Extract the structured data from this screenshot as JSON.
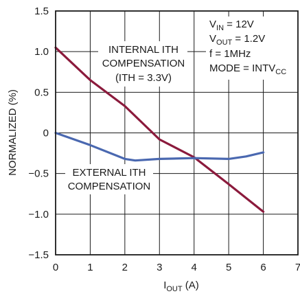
{
  "chart_data": {
    "type": "line",
    "xlabel": "I_OUT (A)",
    "ylabel": "NORMALIZED (%)",
    "xlim": [
      0,
      7
    ],
    "ylim": [
      -1.5,
      1.5
    ],
    "x_ticks": [
      "0",
      "1",
      "2",
      "3",
      "4",
      "5",
      "6",
      "7"
    ],
    "y_ticks": [
      "1.5",
      "1.0",
      "0.5",
      "0",
      "−0.5",
      "−1.0",
      "−1.5"
    ],
    "grid": true,
    "series": [
      {
        "name": "INTERNAL ITH COMPENSATION (ITH = 3.3V)",
        "color": "#8b1a3c",
        "x": [
          0,
          1,
          2,
          3,
          4,
          5,
          6
        ],
        "y": [
          1.05,
          0.65,
          0.33,
          -0.08,
          -0.3,
          -0.63,
          -0.97
        ]
      },
      {
        "name": "EXTERNAL ITH COMPENSATION",
        "color": "#4a68b0",
        "x": [
          0,
          1,
          2,
          2.3,
          3,
          4,
          5,
          5.5,
          6
        ],
        "y": [
          0.0,
          -0.15,
          -0.32,
          -0.34,
          -0.32,
          -0.31,
          -0.32,
          -0.29,
          -0.24
        ]
      }
    ],
    "annotations": {
      "internal_line1": "INTERNAL ITH",
      "internal_line2": "COMPENSATION",
      "internal_line3": "(ITH = 3.3V)",
      "external_line1": "EXTERNAL ITH",
      "external_line2": "COMPENSATION",
      "cond_vin": "V",
      "cond_vin_sub": "IN",
      "cond_vin_val": " = 12V",
      "cond_vout": "V",
      "cond_vout_sub": "OUT",
      "cond_vout_val": " = 1.2V",
      "cond_f": "f = 1MHz",
      "cond_mode": "MODE = INTV",
      "cond_mode_sub": "CC"
    },
    "xlabel_main": "I",
    "xlabel_sub": "OUT",
    "xlabel_unit": " (A)"
  }
}
